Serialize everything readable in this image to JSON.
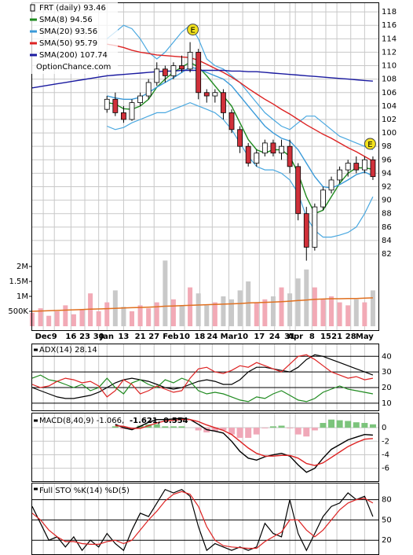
{
  "chart_data": [
    {
      "type": "candlestick",
      "title": "FRT (daily) 93.46",
      "watermark": "OptionChance.com",
      "x": [
        0,
        3,
        6,
        9,
        12,
        15,
        18,
        21,
        24,
        27,
        30,
        33,
        36,
        39,
        42,
        45,
        48,
        51,
        54,
        57,
        60,
        63,
        66,
        69,
        72,
        75,
        78,
        81,
        84,
        87,
        90,
        93,
        96,
        99,
        102,
        105,
        108,
        111,
        114,
        117,
        120,
        123
      ],
      "xlim": [
        0,
        125
      ],
      "xticks": [
        {
          "value": 4,
          "label": "Dec"
        },
        {
          "value": 8,
          "label": "9"
        },
        {
          "value": 14,
          "label": "16"
        },
        {
          "value": 19,
          "label": "23"
        },
        {
          "value": 24,
          "label": "30"
        },
        {
          "value": 27,
          "label": "Jan"
        },
        {
          "value": 33,
          "label": "13"
        },
        {
          "value": 39,
          "label": "21"
        },
        {
          "value": 44,
          "label": "27"
        },
        {
          "value": 50,
          "label": "Feb"
        },
        {
          "value": 55,
          "label": "10"
        },
        {
          "value": 60.5,
          "label": "18"
        },
        {
          "value": 65,
          "label": "24"
        },
        {
          "value": 71,
          "label": "Mar"
        },
        {
          "value": 76,
          "label": "10"
        },
        {
          "value": 82,
          "label": "17"
        },
        {
          "value": 87.5,
          "label": "24"
        },
        {
          "value": 93,
          "label": "31"
        },
        {
          "value": 95,
          "label": "Apr"
        },
        {
          "value": 101,
          "label": "8"
        },
        {
          "value": 106,
          "label": "15"
        },
        {
          "value": 110,
          "label": "21"
        },
        {
          "value": 115,
          "label": "28"
        },
        {
          "value": 120,
          "label": "May"
        }
      ],
      "ylim": [
        80.6,
        119.3
      ],
      "yticks": [
        82,
        84,
        86,
        88,
        90,
        92,
        94,
        96,
        98,
        100,
        102,
        104,
        106,
        108,
        110,
        112,
        114,
        116,
        118
      ],
      "grid": true,
      "grid_color": "#c8c8c8",
      "up_color": "#ffffff",
      "down_color": "#d0303a",
      "open": [
        null,
        null,
        null,
        null,
        null,
        null,
        null,
        null,
        null,
        103.5,
        105,
        103,
        102,
        104.5,
        105.5,
        107.5,
        109.5,
        108.5,
        110,
        109.5,
        112,
        106,
        105.5,
        106,
        103,
        100.5,
        98,
        95.5,
        97,
        98.5,
        97,
        98,
        95,
        88,
        83,
        89,
        91.5,
        93,
        94.5,
        95.5,
        94.5,
        96
      ],
      "high": [
        null,
        null,
        null,
        null,
        null,
        null,
        null,
        null,
        null,
        105.5,
        106,
        104,
        105,
        106,
        108,
        110.5,
        110,
        110.5,
        111.5,
        113.5,
        112.5,
        106.5,
        106.5,
        106.5,
        103.5,
        101,
        98.5,
        97.5,
        99,
        99,
        99,
        99,
        95.5,
        89,
        89.5,
        92,
        93.5,
        95,
        96,
        96.5,
        96.5,
        96.5
      ],
      "low": [
        null,
        null,
        null,
        null,
        null,
        null,
        null,
        null,
        null,
        103,
        102.5,
        101.5,
        101.8,
        104,
        105,
        107,
        107.5,
        108,
        109,
        109,
        105,
        104.5,
        104.5,
        102,
        100,
        97,
        95,
        95,
        96.5,
        96.5,
        96,
        94,
        87,
        81,
        82.5,
        88.5,
        91,
        92.5,
        93.5,
        94,
        94,
        93
      ],
      "close": [
        null,
        null,
        null,
        null,
        null,
        null,
        null,
        null,
        null,
        105,
        103,
        102,
        104.5,
        105.5,
        107.5,
        109.5,
        108.5,
        110,
        109.5,
        112,
        106,
        105.5,
        106,
        103,
        100.5,
        98,
        95.5,
        97,
        98.5,
        97,
        98,
        95,
        88,
        83,
        89,
        91.5,
        93,
        94.5,
        95.5,
        94.5,
        96,
        93.5
      ],
      "series": [
        {
          "name": "SMA(8) 94.56",
          "color": "#1f8a1f",
          "values": [
            null,
            null,
            null,
            null,
            null,
            null,
            null,
            null,
            null,
            104.5,
            104.3,
            103.6,
            103.5,
            104,
            105,
            106.8,
            108,
            109,
            109.8,
            110.5,
            109.8,
            108.5,
            107,
            105.5,
            104,
            101.5,
            99,
            97.5,
            97,
            97.5,
            97.5,
            96.5,
            94,
            90.5,
            88,
            88.5,
            90.5,
            92.5,
            94,
            94.8,
            94.8,
            94.6
          ]
        },
        {
          "name": "SMA(20) 93.56",
          "color": "#3a9ad9",
          "values": [
            null,
            null,
            null,
            null,
            null,
            null,
            null,
            null,
            null,
            105.5,
            105.2,
            105,
            105,
            105.3,
            106,
            106.8,
            107.5,
            108.2,
            109,
            109.8,
            109.5,
            109,
            108.5,
            108,
            107,
            105.5,
            104,
            102.5,
            101,
            100,
            99.2,
            98.8,
            97.5,
            95.5,
            93.5,
            92,
            91.8,
            92.3,
            93,
            93.8,
            94.2,
            93.6
          ]
        },
        {
          "name": "SMA(50) 95.79",
          "color": "#dd2222",
          "values": [
            null,
            null,
            null,
            null,
            null,
            null,
            null,
            null,
            null,
            113.2,
            113,
            112.7,
            112.3,
            112,
            111.8,
            111.6,
            111.5,
            111.4,
            111.3,
            111.2,
            110.8,
            110.2,
            109.6,
            109,
            108.3,
            107.5,
            106.6,
            105.8,
            105,
            104.3,
            103.5,
            102.8,
            102,
            101.2,
            100.5,
            99.8,
            99.2,
            98.5,
            97.8,
            97.2,
            96.5,
            95.8
          ]
        },
        {
          "name": "SMA(200) 107.74",
          "color": "#1a1aa0",
          "values": [
            106.7,
            106.9,
            107.1,
            107.3,
            107.5,
            107.7,
            107.9,
            108.1,
            108.3,
            108.5,
            108.6,
            108.7,
            108.8,
            108.9,
            109,
            109.1,
            109.2,
            109.2,
            109.3,
            109.3,
            109.3,
            109.3,
            109.3,
            109.3,
            109.2,
            109.2,
            109.1,
            109.1,
            109,
            108.9,
            108.8,
            108.7,
            108.6,
            108.5,
            108.4,
            108.3,
            108.2,
            108.1,
            108,
            107.9,
            107.8,
            107.7
          ]
        }
      ],
      "bands": {
        "color": "#4aa8e0",
        "upper": [
          null,
          null,
          null,
          null,
          null,
          null,
          null,
          null,
          null,
          114,
          115,
          116,
          115.5,
          114,
          112,
          111,
          112,
          113.5,
          115,
          116,
          114,
          111,
          110,
          109.5,
          108.5,
          107.5,
          106,
          104.5,
          103,
          102,
          101,
          100.5,
          101.5,
          102.5,
          102.5,
          101.5,
          100.5,
          99.5,
          99,
          98.5,
          98,
          97.5
        ],
        "lower": [
          null,
          null,
          null,
          null,
          null,
          null,
          null,
          null,
          null,
          101,
          100.5,
          100.8,
          101.5,
          102,
          102.5,
          103,
          103,
          103.5,
          104,
          104.5,
          104,
          103.5,
          103,
          102,
          100.5,
          98.5,
          96.5,
          95,
          94.5,
          94.5,
          94,
          93,
          91,
          87.5,
          85.5,
          84.5,
          84.5,
          84.8,
          85.2,
          86,
          88,
          90.5
        ]
      },
      "events": [
        {
          "x": 58,
          "label": "E"
        },
        {
          "x": 122,
          "label": "E"
        }
      ],
      "volume": {
        "ylim": [
          0,
          2500000
        ],
        "yticks": [
          {
            "value": 500000,
            "label": "500K"
          },
          {
            "value": 1000000,
            "label": "1M"
          },
          {
            "value": 1500000,
            "label": "1.5M"
          },
          {
            "value": 2000000,
            "label": "2M"
          }
        ],
        "up_color": "#f2aab6",
        "down_color": "#c9c9c9",
        "values": [
          450000,
          600000,
          350000,
          500000,
          700000,
          400000,
          550000,
          1100000,
          500000,
          800000,
          1200000,
          650000,
          500000,
          700000,
          600000,
          800000,
          2200000,
          900000,
          700000,
          1300000,
          1100000,
          700000,
          800000,
          1000000,
          900000,
          1200000,
          1500000,
          800000,
          900000,
          1000000,
          1300000,
          1100000,
          1600000,
          1900000,
          1300000,
          900000,
          1000000,
          800000,
          700000,
          900000,
          800000,
          1200000
        ],
        "average": {
          "color": "#e07020",
          "values": [
            500000,
            510000,
            520000,
            530000,
            540000,
            550000,
            560000,
            570000,
            580000,
            590000,
            600000,
            610000,
            620000,
            630000,
            640000,
            650000,
            670000,
            680000,
            690000,
            700000,
            710000,
            720000,
            730000,
            740000,
            750000,
            760000,
            780000,
            790000,
            800000,
            810000,
            820000,
            840000,
            860000,
            880000,
            900000,
            910000,
            920000,
            920000,
            930000,
            930000,
            940000,
            950000
          ]
        }
      }
    },
    {
      "type": "line",
      "title": "ADX(14) 28.14",
      "ylim": [
        5.4,
        47.7
      ],
      "yticks": [
        10,
        20,
        30,
        40
      ],
      "grid": true,
      "grid_color": "#000000",
      "series": [
        {
          "color": "#000000",
          "values": [
            20,
            18,
            16,
            14,
            13,
            13,
            14,
            15,
            17,
            20,
            23,
            25,
            26,
            25,
            24,
            22,
            20,
            19,
            20,
            22,
            24,
            25,
            24,
            22,
            22,
            25,
            30,
            33,
            33,
            32,
            31,
            30,
            33,
            38,
            41,
            40,
            38,
            36,
            34,
            32,
            30,
            28
          ]
        },
        {
          "color": "#1f8a1f",
          "values": [
            26,
            28,
            25,
            24,
            22,
            20,
            22,
            18,
            20,
            26,
            20,
            16,
            23,
            25,
            22,
            20,
            25,
            23,
            26,
            24,
            18,
            16,
            17,
            16,
            14,
            12,
            11,
            14,
            13,
            16,
            18,
            15,
            12,
            11,
            13,
            17,
            19,
            21,
            19,
            18,
            17,
            16
          ]
        },
        {
          "color": "#dd2222",
          "values": [
            22,
            20,
            21,
            24,
            26,
            25,
            23,
            24,
            21,
            14,
            18,
            25,
            22,
            16,
            18,
            21,
            19,
            17,
            18,
            26,
            32,
            33,
            30,
            29,
            31,
            34,
            33,
            36,
            34,
            32,
            30,
            35,
            40,
            41,
            38,
            34,
            30,
            28,
            26,
            27,
            25,
            26
          ]
        }
      ]
    },
    {
      "type": "macd",
      "title": "MACD(8,40,9) -1.066,",
      "ylim": [
        -7.9,
        2.1
      ],
      "yticks": [
        0,
        -2,
        -4,
        -6
      ],
      "grid": true,
      "grid_color": "#c8c8c8",
      "series": [
        {
          "color": "#000000",
          "values": [
            null,
            null,
            null,
            null,
            null,
            null,
            null,
            null,
            null,
            null,
            0.5,
            0,
            -0.3,
            0.2,
            0.8,
            1.2,
            1.2,
            1.3,
            1.4,
            1.2,
            0.5,
            -0.3,
            -0.5,
            -0.8,
            -2,
            -3.5,
            -4.5,
            -4.8,
            -4.3,
            -4,
            -3.8,
            -4.2,
            -5.5,
            -6.6,
            -6,
            -4.5,
            -3.2,
            -2.5,
            -1.8,
            -1.4,
            -1,
            -1.1
          ]
        },
        {
          "name": "-1.621,",
          "color": "#dd2222",
          "values": [
            null,
            null,
            null,
            null,
            null,
            null,
            null,
            null,
            null,
            null,
            0.3,
            0.2,
            -0.1,
            -0.1,
            0.3,
            0.7,
            1,
            1.1,
            1.2,
            1.2,
            0.9,
            0.4,
            0,
            -0.4,
            -1,
            -2,
            -3,
            -3.8,
            -4.2,
            -4.2,
            -4.1,
            -4.1,
            -4.5,
            -5.3,
            -5.6,
            -5.2,
            -4.4,
            -3.6,
            -2.8,
            -2.2,
            -1.7,
            -1.6
          ]
        }
      ],
      "histogram": {
        "name": "0.554",
        "label_color": "#2255cc",
        "up_color": "#7cc47c",
        "down_color": "#f0a8b8",
        "values": [
          null,
          null,
          null,
          null,
          null,
          null,
          null,
          null,
          null,
          null,
          0.2,
          -0.2,
          -0.2,
          0.3,
          0.5,
          0.5,
          0.2,
          0.2,
          0.2,
          0,
          -0.4,
          -0.7,
          -0.5,
          -0.4,
          -1,
          -1.5,
          -1.5,
          -1,
          -0.1,
          0.2,
          0.3,
          -0.1,
          -1,
          -1.3,
          -0.4,
          0.7,
          1.2,
          1.1,
          1,
          0.8,
          0.7,
          0.5
        ]
      }
    },
    {
      "type": "line",
      "title": "Full STO %K(14) %D(5)",
      "ylim": [
        -0.7,
        104
      ],
      "yticks": [
        20,
        50,
        80
      ],
      "grid": true,
      "grid_color": "#000000",
      "series": [
        {
          "color": "#000000",
          "values": [
            70,
            45,
            20,
            25,
            10,
            25,
            5,
            20,
            10,
            30,
            15,
            5,
            35,
            60,
            55,
            75,
            95,
            90,
            95,
            85,
            40,
            5,
            15,
            10,
            5,
            10,
            5,
            10,
            45,
            30,
            25,
            80,
            30,
            5,
            30,
            55,
            70,
            75,
            90,
            80,
            85,
            55
          ]
        },
        {
          "color": "#dd2222",
          "values": [
            60,
            50,
            35,
            25,
            18,
            18,
            15,
            14,
            14,
            18,
            20,
            15,
            20,
            35,
            50,
            63,
            78,
            88,
            92,
            88,
            70,
            40,
            20,
            12,
            10,
            9,
            8,
            8,
            18,
            25,
            32,
            50,
            50,
            35,
            25,
            35,
            50,
            65,
            75,
            80,
            82,
            75
          ]
        }
      ]
    }
  ]
}
